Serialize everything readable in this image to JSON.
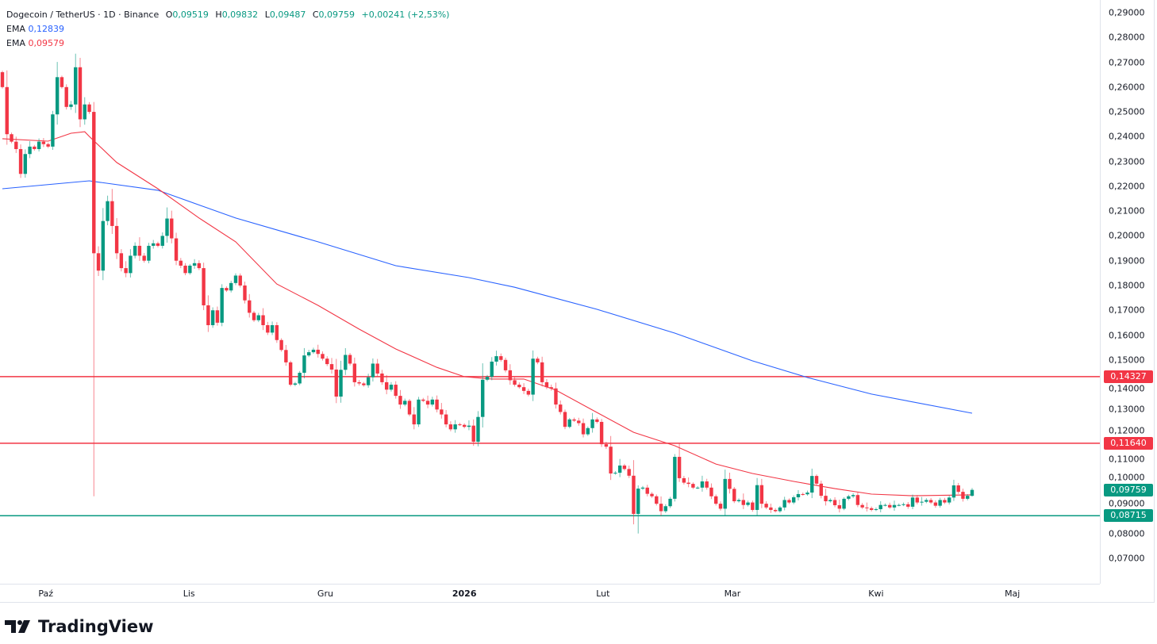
{
  "legend": {
    "symbol": "Dogecoin / TetherUS · 1D · Binance",
    "o_label": "O",
    "o": "0,09519",
    "h_label": "H",
    "h": "0,09832",
    "l_label": "L",
    "l": "0,09487",
    "c_label": "C",
    "c": "0,09759",
    "change": "+0,00241 (+2,53%)",
    "ema1_label": "EMA",
    "ema1_value": "0,12839",
    "ema2_label": "EMA",
    "ema2_value": "0,09579"
  },
  "colors": {
    "up": "#089981",
    "down": "#f23645",
    "ema_slow": "#2962ff",
    "ema_fast": "#f23645",
    "level_red": "#f23645",
    "level_green": "#089981"
  },
  "brand": "TradingView",
  "chart_data": {
    "type": "candlestick",
    "title": "Dogecoin / TetherUS · 1D · Binance",
    "ylim": [
      0.065,
      0.2905
    ],
    "grid": false,
    "y_ticks": [
      "0,29000",
      "0,28000",
      "0,27000",
      "0,26000",
      "0,25000",
      "0,24000",
      "0,23000",
      "0,22000",
      "0,21000",
      "0,20000",
      "0,19000",
      "0,18000",
      "0,17000",
      "0,16000",
      "0,15000",
      "0,14000",
      "0,13000",
      "0,12000",
      "0,11000",
      "0,10000",
      "0,09000",
      "0,08000",
      "0,07000"
    ],
    "x_ticks": [
      {
        "label": "Paź",
        "bar": 9.5,
        "bold": false
      },
      {
        "label": "Lis",
        "bar": 40.8,
        "bold": false
      },
      {
        "label": "Gru",
        "bar": 70.6,
        "bold": false
      },
      {
        "label": "2026",
        "bar": 101,
        "bold": true
      },
      {
        "label": "Lut",
        "bar": 131.3,
        "bold": false
      },
      {
        "label": "Mar",
        "bar": 159.6,
        "bold": false
      },
      {
        "label": "Kwi",
        "bar": 191,
        "bold": false
      },
      {
        "label": "Maj",
        "bar": 220.8,
        "bold": false
      }
    ],
    "first_open": 0.266,
    "close": [
      0.26,
      0.241,
      0.238,
      0.235,
      0.225,
      0.233,
      0.236,
      0.235,
      0.238,
      0.237,
      0.236,
      0.249,
      0.264,
      0.26,
      0.252,
      0.253,
      0.268,
      0.247,
      0.253,
      0.25,
      0.193,
      0.186,
      0.206,
      0.214,
      0.204,
      0.193,
      0.187,
      0.185,
      0.192,
      0.196,
      0.192,
      0.19,
      0.196,
      0.197,
      0.196,
      0.2,
      0.207,
      0.199,
      0.19,
      0.188,
      0.185,
      0.188,
      0.189,
      0.187,
      0.172,
      0.164,
      0.17,
      0.165,
      0.179,
      0.178,
      0.181,
      0.184,
      0.18,
      0.174,
      0.169,
      0.166,
      0.168,
      0.164,
      0.161,
      0.164,
      0.158,
      0.154,
      0.149,
      0.14,
      0.1405,
      0.1448,
      0.1518,
      0.1531,
      0.1541,
      0.1524,
      0.1505,
      0.1483,
      0.1461,
      0.1352,
      0.146,
      0.152,
      0.1485,
      0.141,
      0.1405,
      0.1398,
      0.143,
      0.1485,
      0.1445,
      0.141,
      0.138,
      0.14,
      0.1355,
      0.132,
      0.1335,
      0.128,
      0.124,
      0.134,
      0.1335,
      0.132,
      0.134,
      0.13,
      0.128,
      0.124,
      0.122,
      0.124,
      0.1238,
      0.123,
      0.1235,
      0.117,
      0.127,
      0.142,
      0.1432,
      0.1493,
      0.1515,
      0.15,
      0.1458,
      0.1418,
      0.14,
      0.139,
      0.1375,
      0.136,
      0.1505,
      0.149,
      0.141,
      0.139,
      0.1385,
      0.132,
      0.129,
      0.123,
      0.126,
      0.1255,
      0.1245,
      0.12,
      0.1225,
      0.126,
      0.125,
      0.116,
      0.115,
      0.1042,
      0.1045,
      0.1074,
      0.106,
      0.1033,
      0.0879,
      0.0981,
      0.0985,
      0.096,
      0.095,
      0.092,
      0.089,
      0.091,
      0.094,
      0.1109,
      0.1023,
      0.1005,
      0.1,
      0.0985,
      0.0985,
      0.101,
      0.0985,
      0.095,
      0.092,
      0.09,
      0.102,
      0.098,
      0.093,
      0.0935,
      0.0915,
      0.0925,
      0.0895,
      0.0995,
      0.092,
      0.0905,
      0.0895,
      0.089,
      0.0905,
      0.0935,
      0.0925,
      0.0946,
      0.0959,
      0.0958,
      0.0965,
      0.1032,
      0.1001,
      0.0952,
      0.093,
      0.0935,
      0.0914,
      0.09,
      0.094,
      0.095,
      0.0955,
      0.0915,
      0.0905,
      0.0902,
      0.0895,
      0.0898,
      0.0915,
      0.0915,
      0.0905,
      0.0915,
      0.0915,
      0.0918,
      0.0908,
      0.0945,
      0.0925,
      0.0928,
      0.0935,
      0.0925,
      0.0912,
      0.0935,
      0.0925,
      0.0945,
      0.0994,
      0.0968,
      0.094,
      0.0952,
      0.09759
    ],
    "wick_extremes": [
      {
        "bar": 20,
        "high": 0.254,
        "low": 0.095
      },
      {
        "bar": 139,
        "low": 0.08
      },
      {
        "bar": 148,
        "high": 0.1165
      },
      {
        "bar": 212,
        "high": 0.09832,
        "low": 0.09487
      }
    ],
    "ema_series": [
      {
        "value": "0,12839",
        "color": "#2962ff",
        "points": [
          [
            0,
            0.219
          ],
          [
            19,
            0.2222
          ],
          [
            34,
            0.2184
          ],
          [
            51,
            0.2072
          ],
          [
            69,
            0.1976
          ],
          [
            86,
            0.188
          ],
          [
            102,
            0.1832
          ],
          [
            112,
            0.1793
          ],
          [
            130,
            0.1704
          ],
          [
            147,
            0.1608
          ],
          [
            164,
            0.1496
          ],
          [
            176,
            0.1429
          ],
          [
            190,
            0.1362
          ],
          [
            212,
            0.1285
          ]
        ]
      },
      {
        "value": "0,09579",
        "color": "#f23645",
        "points": [
          [
            0,
            0.2392
          ],
          [
            10,
            0.2382
          ],
          [
            15,
            0.2414
          ],
          [
            18,
            0.242
          ],
          [
            19,
            0.2401
          ],
          [
            25,
            0.2296
          ],
          [
            34,
            0.219
          ],
          [
            43,
            0.2072
          ],
          [
            51,
            0.1976
          ],
          [
            60,
            0.1806
          ],
          [
            69,
            0.172
          ],
          [
            78,
            0.1624
          ],
          [
            86,
            0.1544
          ],
          [
            95,
            0.147
          ],
          [
            101,
            0.1432
          ],
          [
            107,
            0.1423
          ],
          [
            114,
            0.1423
          ],
          [
            121,
            0.1378
          ],
          [
            130,
            0.1288
          ],
          [
            138,
            0.1208
          ],
          [
            147,
            0.1154
          ],
          [
            156,
            0.108
          ],
          [
            164,
            0.1042
          ],
          [
            173,
            0.101
          ],
          [
            182,
            0.0981
          ],
          [
            190,
            0.0959
          ],
          [
            199,
            0.0952
          ],
          [
            212,
            0.0956
          ]
        ]
      }
    ],
    "levels": [
      {
        "price": 0.14327,
        "label": "0,14327",
        "color": "#f23645"
      },
      {
        "price": 0.1164,
        "label": "0,11640",
        "color": "#f23645"
      },
      {
        "price": 0.08715,
        "label": "0,08715",
        "color": "#089981"
      }
    ],
    "last_price": {
      "price": 0.09759,
      "label": "0,09759",
      "color": "#089981"
    }
  }
}
